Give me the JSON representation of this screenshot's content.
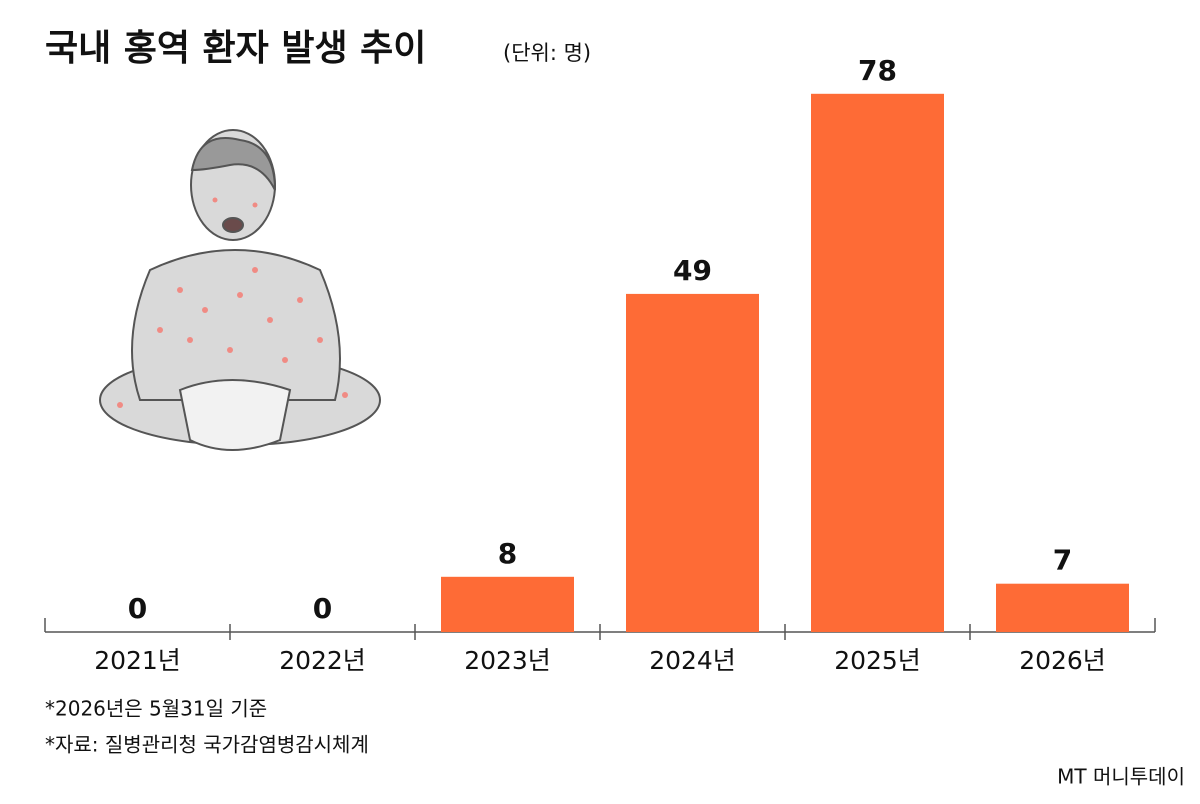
{
  "chart_data": {
    "type": "bar",
    "title": "국내 홍역 환자 발생 추이",
    "subtitle": "(단위: 명)",
    "categories": [
      "2021년",
      "2022년",
      "2023년",
      "2024년",
      "2025년",
      "2026년"
    ],
    "values": [
      0,
      0,
      8,
      49,
      78,
      7
    ],
    "color": "#fe6b36",
    "notes": [
      "*2026년은 5월31일 기준",
      "*자료: 질병관리청 국가감염병감시체계"
    ],
    "watermark": "MT 머니투데이"
  }
}
